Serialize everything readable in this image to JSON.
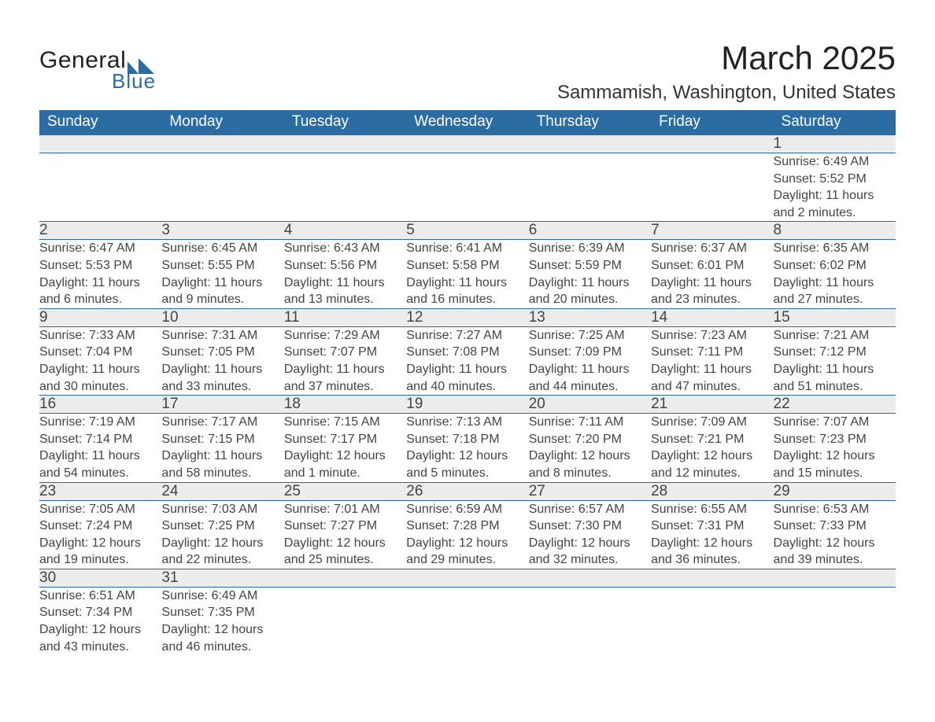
{
  "brand": {
    "name_main": "General",
    "name_sub": "Blue",
    "mark_color": "#2b6ca3",
    "text_main_color": "#222222",
    "text_sub_color": "#2b6ca3"
  },
  "title": {
    "month_year": "March 2025",
    "location": "Sammamish, Washington, United States"
  },
  "colors": {
    "header_bg": "#2b6ca3",
    "header_text": "#ffffff",
    "daynum_bg": "#ececec",
    "row_divider": "#2b6ca3",
    "body_text": "#444444",
    "page_bg": "#ffffff"
  },
  "typography": {
    "title_fontsize_pt": 32,
    "location_fontsize_pt": 18,
    "header_fontsize_pt": 14,
    "daynum_fontsize_pt": 14,
    "body_fontsize_pt": 12,
    "font_family": "Arial"
  },
  "calendar": {
    "type": "table",
    "columns": [
      "Sunday",
      "Monday",
      "Tuesday",
      "Wednesday",
      "Thursday",
      "Friday",
      "Saturday"
    ],
    "weeks": [
      {
        "nums": [
          "",
          "",
          "",
          "",
          "",
          "",
          "1"
        ],
        "details": [
          "",
          "",
          "",
          "",
          "",
          "",
          "Sunrise: 6:49 AM\nSunset: 5:52 PM\nDaylight: 11 hours and 2 minutes."
        ]
      },
      {
        "nums": [
          "2",
          "3",
          "4",
          "5",
          "6",
          "7",
          "8"
        ],
        "details": [
          "Sunrise: 6:47 AM\nSunset: 5:53 PM\nDaylight: 11 hours and 6 minutes.",
          "Sunrise: 6:45 AM\nSunset: 5:55 PM\nDaylight: 11 hours and 9 minutes.",
          "Sunrise: 6:43 AM\nSunset: 5:56 PM\nDaylight: 11 hours and 13 minutes.",
          "Sunrise: 6:41 AM\nSunset: 5:58 PM\nDaylight: 11 hours and 16 minutes.",
          "Sunrise: 6:39 AM\nSunset: 5:59 PM\nDaylight: 11 hours and 20 minutes.",
          "Sunrise: 6:37 AM\nSunset: 6:01 PM\nDaylight: 11 hours and 23 minutes.",
          "Sunrise: 6:35 AM\nSunset: 6:02 PM\nDaylight: 11 hours and 27 minutes."
        ]
      },
      {
        "nums": [
          "9",
          "10",
          "11",
          "12",
          "13",
          "14",
          "15"
        ],
        "details": [
          "Sunrise: 7:33 AM\nSunset: 7:04 PM\nDaylight: 11 hours and 30 minutes.",
          "Sunrise: 7:31 AM\nSunset: 7:05 PM\nDaylight: 11 hours and 33 minutes.",
          "Sunrise: 7:29 AM\nSunset: 7:07 PM\nDaylight: 11 hours and 37 minutes.",
          "Sunrise: 7:27 AM\nSunset: 7:08 PM\nDaylight: 11 hours and 40 minutes.",
          "Sunrise: 7:25 AM\nSunset: 7:09 PM\nDaylight: 11 hours and 44 minutes.",
          "Sunrise: 7:23 AM\nSunset: 7:11 PM\nDaylight: 11 hours and 47 minutes.",
          "Sunrise: 7:21 AM\nSunset: 7:12 PM\nDaylight: 11 hours and 51 minutes."
        ]
      },
      {
        "nums": [
          "16",
          "17",
          "18",
          "19",
          "20",
          "21",
          "22"
        ],
        "details": [
          "Sunrise: 7:19 AM\nSunset: 7:14 PM\nDaylight: 11 hours and 54 minutes.",
          "Sunrise: 7:17 AM\nSunset: 7:15 PM\nDaylight: 11 hours and 58 minutes.",
          "Sunrise: 7:15 AM\nSunset: 7:17 PM\nDaylight: 12 hours and 1 minute.",
          "Sunrise: 7:13 AM\nSunset: 7:18 PM\nDaylight: 12 hours and 5 minutes.",
          "Sunrise: 7:11 AM\nSunset: 7:20 PM\nDaylight: 12 hours and 8 minutes.",
          "Sunrise: 7:09 AM\nSunset: 7:21 PM\nDaylight: 12 hours and 12 minutes.",
          "Sunrise: 7:07 AM\nSunset: 7:23 PM\nDaylight: 12 hours and 15 minutes."
        ]
      },
      {
        "nums": [
          "23",
          "24",
          "25",
          "26",
          "27",
          "28",
          "29"
        ],
        "details": [
          "Sunrise: 7:05 AM\nSunset: 7:24 PM\nDaylight: 12 hours and 19 minutes.",
          "Sunrise: 7:03 AM\nSunset: 7:25 PM\nDaylight: 12 hours and 22 minutes.",
          "Sunrise: 7:01 AM\nSunset: 7:27 PM\nDaylight: 12 hours and 25 minutes.",
          "Sunrise: 6:59 AM\nSunset: 7:28 PM\nDaylight: 12 hours and 29 minutes.",
          "Sunrise: 6:57 AM\nSunset: 7:30 PM\nDaylight: 12 hours and 32 minutes.",
          "Sunrise: 6:55 AM\nSunset: 7:31 PM\nDaylight: 12 hours and 36 minutes.",
          "Sunrise: 6:53 AM\nSunset: 7:33 PM\nDaylight: 12 hours and 39 minutes."
        ]
      },
      {
        "nums": [
          "30",
          "31",
          "",
          "",
          "",
          "",
          ""
        ],
        "details": [
          "Sunrise: 6:51 AM\nSunset: 7:34 PM\nDaylight: 12 hours and 43 minutes.",
          "Sunrise: 6:49 AM\nSunset: 7:35 PM\nDaylight: 12 hours and 46 minutes.",
          "",
          "",
          "",
          "",
          ""
        ]
      }
    ]
  }
}
